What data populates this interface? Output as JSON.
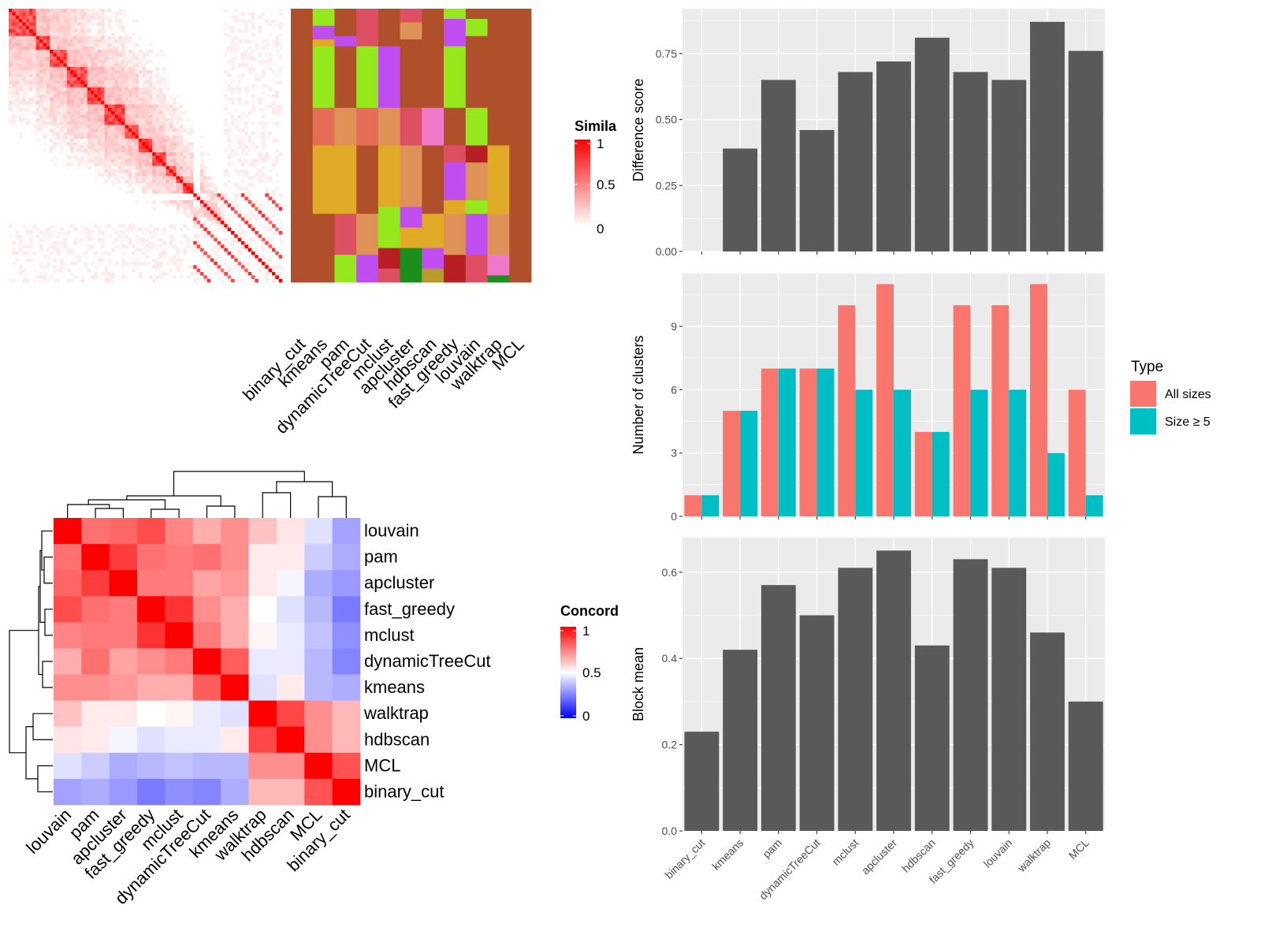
{
  "methods": [
    "binary_cut",
    "kmeans",
    "pam",
    "dynamicTreeCut",
    "mclust",
    "apcluster",
    "hdbscan",
    "fast_greedy",
    "louvain",
    "walktrap",
    "MCL"
  ],
  "similarity_legend": {
    "title": "Simila",
    "ticks": [
      "1",
      "0.5",
      "0"
    ]
  },
  "concordance_legend": {
    "title": "Concord",
    "ticks": [
      "1",
      "0.5",
      "0"
    ]
  },
  "colors": {
    "bar": "#595959",
    "panel_bg": "#EBEBEB",
    "all_sizes": "#F8766D",
    "size_ge5": "#00BFC4",
    "heat_high": "#FF0000",
    "heat_mid": "#FFFFFF",
    "heat_low": "#0000FF"
  },
  "chart_data": [
    {
      "type": "heatmap",
      "name": "similarity",
      "columns": [
        "binary_cut",
        "kmeans",
        "pam",
        "dynamicTreeCut",
        "mclust",
        "apcluster",
        "hdbscan",
        "fast_greedy",
        "louvain",
        "walktrap",
        "MCL"
      ],
      "legend_title": "Simila",
      "legend_ticks": [
        1,
        0.5,
        0
      ],
      "diagonal_blocks": [
        8,
        4,
        5,
        6,
        5,
        6,
        4,
        4,
        4,
        3,
        2,
        3
      ]
    },
    {
      "type": "heatmap",
      "name": "concordance",
      "rows": [
        "louvain",
        "pam",
        "apcluster",
        "fast_greedy",
        "mclust",
        "dynamicTreeCut",
        "kmeans",
        "walktrap",
        "hdbscan",
        "MCL",
        "binary_cut"
      ],
      "columns": [
        "louvain",
        "pam",
        "apcluster",
        "fast_greedy",
        "mclust",
        "dynamicTreeCut",
        "kmeans",
        "walktrap",
        "hdbscan",
        "MCL",
        "binary_cut"
      ],
      "legend_title": "Concord",
      "legend_ticks": [
        1,
        0.5,
        0
      ],
      "values": [
        [
          1.0,
          0.78,
          0.8,
          0.85,
          0.74,
          0.66,
          0.72,
          0.62,
          0.55,
          0.44,
          0.32
        ],
        [
          0.78,
          1.0,
          0.88,
          0.78,
          0.76,
          0.78,
          0.72,
          0.54,
          0.54,
          0.4,
          0.34
        ],
        [
          0.8,
          0.88,
          1.0,
          0.76,
          0.76,
          0.68,
          0.7,
          0.54,
          0.48,
          0.34,
          0.3
        ],
        [
          0.85,
          0.78,
          0.76,
          1.0,
          0.9,
          0.72,
          0.66,
          0.5,
          0.44,
          0.36,
          0.24
        ],
        [
          0.74,
          0.76,
          0.76,
          0.9,
          1.0,
          0.76,
          0.66,
          0.52,
          0.46,
          0.38,
          0.28
        ],
        [
          0.66,
          0.78,
          0.68,
          0.72,
          0.76,
          1.0,
          0.82,
          0.46,
          0.46,
          0.36,
          0.26
        ],
        [
          0.72,
          0.72,
          0.7,
          0.66,
          0.66,
          0.82,
          1.0,
          0.44,
          0.54,
          0.36,
          0.34
        ],
        [
          0.62,
          0.54,
          0.54,
          0.5,
          0.52,
          0.46,
          0.44,
          1.0,
          0.86,
          0.72,
          0.64
        ],
        [
          0.55,
          0.54,
          0.48,
          0.44,
          0.46,
          0.46,
          0.54,
          0.86,
          1.0,
          0.72,
          0.64
        ],
        [
          0.44,
          0.4,
          0.34,
          0.36,
          0.38,
          0.36,
          0.36,
          0.72,
          0.72,
          1.0,
          0.84
        ],
        [
          0.32,
          0.34,
          0.3,
          0.24,
          0.28,
          0.26,
          0.34,
          0.64,
          0.64,
          0.84,
          1.0
        ]
      ]
    },
    {
      "type": "bar",
      "name": "difference",
      "categories": [
        "binary_cut",
        "kmeans",
        "pam",
        "dynamicTreeCut",
        "mclust",
        "apcluster",
        "hdbscan",
        "fast_greedy",
        "louvain",
        "walktrap",
        "MCL"
      ],
      "values": [
        0.0,
        0.39,
        0.65,
        0.46,
        0.68,
        0.72,
        0.81,
        0.68,
        0.65,
        0.87,
        0.76
      ],
      "ylabel": "Difference score",
      "yticks": [
        "0.00",
        "0.25",
        "0.50",
        "0.75"
      ],
      "ylim": [
        0,
        0.92
      ]
    },
    {
      "type": "bar",
      "name": "clusters",
      "categories": [
        "binary_cut",
        "kmeans",
        "pam",
        "dynamicTreeCut",
        "mclust",
        "apcluster",
        "hdbscan",
        "fast_greedy",
        "louvain",
        "walktrap",
        "MCL"
      ],
      "series": [
        {
          "name": "All sizes",
          "values": [
            1,
            5,
            7,
            7,
            10,
            11,
            4,
            10,
            10,
            11,
            6
          ]
        },
        {
          "name": "Size ≥ 5",
          "values": [
            1,
            5,
            7,
            7,
            6,
            6,
            4,
            6,
            6,
            3,
            1
          ]
        }
      ],
      "ylabel": "Number of clusters",
      "yticks": [
        "0",
        "3",
        "6",
        "9"
      ],
      "ylim": [
        0,
        11.5
      ],
      "legend": {
        "title": "Type",
        "position": "right"
      }
    },
    {
      "type": "bar",
      "name": "block_mean",
      "categories": [
        "binary_cut",
        "kmeans",
        "pam",
        "dynamicTreeCut",
        "mclust",
        "apcluster",
        "hdbscan",
        "fast_greedy",
        "louvain",
        "walktrap",
        "MCL"
      ],
      "values": [
        0.23,
        0.42,
        0.57,
        0.5,
        0.61,
        0.65,
        0.43,
        0.63,
        0.61,
        0.46,
        0.3
      ],
      "ylabel": "Block mean",
      "yticks": [
        "0.0",
        "0.2",
        "0.4",
        "0.6"
      ],
      "ylim": [
        0,
        0.68
      ]
    }
  ]
}
